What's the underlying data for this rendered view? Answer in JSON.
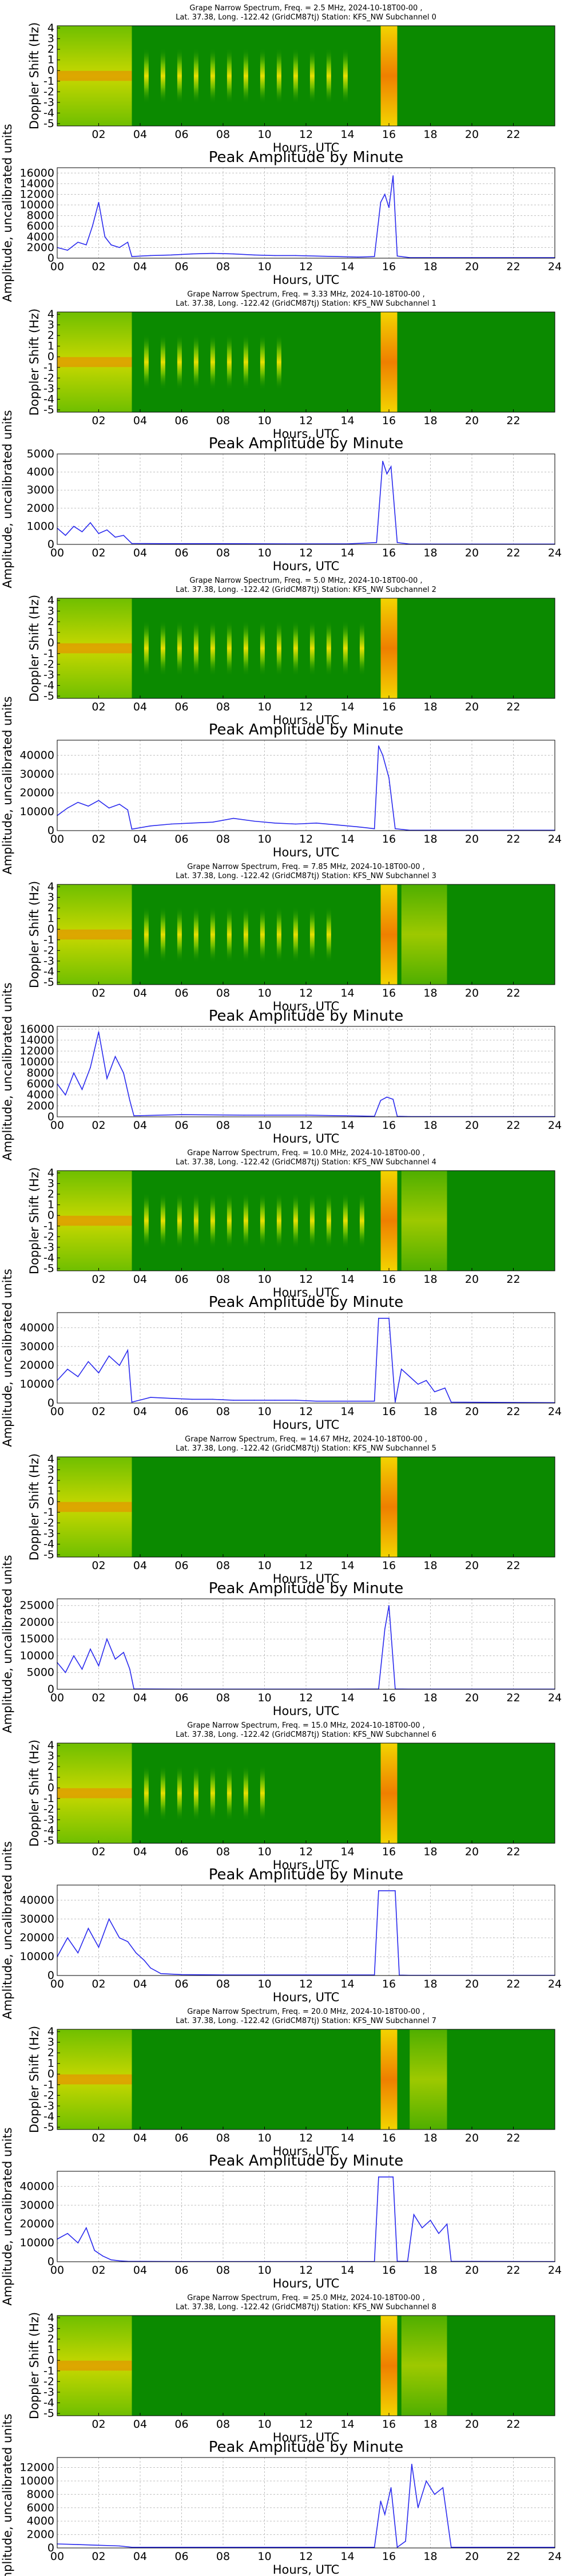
{
  "colors": {
    "spectrogram_background": "#0b8a00",
    "trace_color": "#2a2aee",
    "grid_color": "#bfbfbf",
    "band_yellow": "#f2d400",
    "band_orange": "#ef7f00"
  },
  "common": {
    "x_label": "Hours, UTC",
    "spectrum_y_label": "Doppler Shift (Hz)",
    "amplitude_title": "Peak Amplitude by Minute",
    "amplitude_y_label": "Amplitude, uncalibrated units",
    "spectrum_y_ticks": [
      "4",
      "3",
      "2",
      "1",
      "0",
      "-1",
      "-2",
      "-3",
      "-4",
      "-5"
    ],
    "spectrum_x_ticks": [
      "02",
      "04",
      "06",
      "08",
      "10",
      "12",
      "14",
      "16",
      "18",
      "20",
      "22"
    ],
    "amplitude_x_ticks": [
      "00",
      "02",
      "04",
      "06",
      "08",
      "10",
      "12",
      "14",
      "16",
      "18",
      "20",
      "22",
      "24"
    ]
  },
  "chart_data": [
    {
      "type": "heatmap",
      "title": "Grape Narrow Spectrum, Freq. = 2.5 MHz, 2024-10-18T00-00 ,",
      "subtitle": "Lat.  37.38, Long. -122.42 (GridCM87tj) Station: KFS_NW Subchannel 0",
      "xlabel": "Hours, UTC",
      "ylabel": "Doppler Shift (Hz)",
      "xlim": [
        0,
        24
      ],
      "ylim": [
        -5,
        5
      ],
      "noisy_until_hour": 3.6,
      "pulse_hours": [
        4.3,
        5.1,
        5.9,
        6.7,
        7.5,
        8.3,
        9.1,
        9.9,
        10.7,
        11.5,
        12.3,
        13.1,
        13.9
      ],
      "bright_band_hours": [
        15.6,
        16.4
      ],
      "late_band_hours": []
    },
    {
      "type": "line",
      "title": "Peak Amplitude by Minute",
      "xlabel": "Hours, UTC",
      "ylabel": "Amplitude, uncalibrated units",
      "xlim": [
        0,
        24
      ],
      "ylim": [
        0,
        17000
      ],
      "yticks": [
        0,
        2000,
        4000,
        6000,
        8000,
        10000,
        12000,
        14000,
        16000
      ],
      "x": [
        0,
        0.5,
        1,
        1.4,
        1.7,
        2,
        2.3,
        2.6,
        3,
        3.4,
        3.6,
        4.5,
        5.5,
        6.5,
        7.5,
        8.5,
        9.5,
        10.5,
        11.5,
        12.5,
        13.5,
        14.5,
        15.3,
        15.6,
        15.8,
        16,
        16.2,
        16.4,
        17,
        20,
        24
      ],
      "y": [
        2000,
        1500,
        3000,
        2500,
        6000,
        10500,
        4000,
        2500,
        2000,
        3000,
        300,
        500,
        600,
        800,
        900,
        800,
        600,
        500,
        500,
        400,
        300,
        200,
        300,
        10500,
        12000,
        9500,
        15500,
        400,
        100,
        100,
        100
      ]
    },
    {
      "type": "heatmap",
      "title": "Grape Narrow Spectrum, Freq. = 3.33 MHz, 2024-10-18T00-00 ,",
      "subtitle": "Lat.  37.38, Long. -122.42 (GridCM87tj) Station: KFS_NW Subchannel 1",
      "xlabel": "Hours, UTC",
      "ylabel": "Doppler Shift (Hz)",
      "xlim": [
        0,
        24
      ],
      "ylim": [
        -5,
        5
      ],
      "noisy_until_hour": 3.6,
      "pulse_hours": [
        4.3,
        5.1,
        5.9,
        6.7,
        7.5,
        8.3,
        9.1,
        9.9,
        10.7
      ],
      "bright_band_hours": [
        15.6,
        16.4
      ],
      "late_band_hours": []
    },
    {
      "type": "line",
      "title": "Peak Amplitude by Minute",
      "xlabel": "Hours, UTC",
      "ylabel": "Amplitude, uncalibrated units",
      "xlim": [
        0,
        24
      ],
      "ylim": [
        0,
        5000
      ],
      "yticks": [
        0,
        1000,
        2000,
        3000,
        4000,
        5000
      ],
      "x": [
        0,
        0.4,
        0.8,
        1.2,
        1.6,
        2,
        2.4,
        2.8,
        3.2,
        3.6,
        5,
        8,
        11,
        14,
        15.4,
        15.7,
        15.9,
        16.1,
        16.4,
        17,
        20,
        24
      ],
      "y": [
        900,
        500,
        1000,
        700,
        1200,
        600,
        800,
        400,
        500,
        50,
        40,
        40,
        30,
        30,
        100,
        4600,
        3900,
        4300,
        100,
        20,
        20,
        20
      ]
    },
    {
      "type": "heatmap",
      "title": "Grape Narrow Spectrum, Freq. = 5.0 MHz, 2024-10-18T00-00 ,",
      "subtitle": "Lat.  37.38, Long. -122.42 (GridCM87tj) Station: KFS_NW Subchannel 2",
      "xlabel": "Hours, UTC",
      "ylabel": "Doppler Shift (Hz)",
      "xlim": [
        0,
        24
      ],
      "ylim": [
        -5,
        5
      ],
      "noisy_until_hour": 3.6,
      "pulse_hours": [
        4.3,
        5.1,
        5.9,
        6.7,
        7.5,
        8.3,
        9.1,
        9.9,
        10.7,
        11.5,
        12.3,
        13.1,
        13.9,
        14.7
      ],
      "bright_band_hours": [
        15.6,
        16.4
      ],
      "late_band_hours": []
    },
    {
      "type": "line",
      "title": "Peak Amplitude by Minute",
      "xlabel": "Hours, UTC",
      "ylabel": "Amplitude, uncalibrated units",
      "xlim": [
        0,
        24
      ],
      "ylim": [
        0,
        48000
      ],
      "yticks": [
        0,
        10000,
        20000,
        30000,
        40000
      ],
      "x": [
        0,
        0.5,
        1,
        1.5,
        2,
        2.5,
        3,
        3.4,
        3.6,
        4.5,
        5.5,
        6.5,
        7.5,
        8.5,
        9.5,
        10.5,
        11.5,
        12.5,
        13.5,
        14.5,
        15.3,
        15.5,
        15.7,
        16,
        16.3,
        17,
        20,
        24
      ],
      "y": [
        8000,
        12000,
        15000,
        13000,
        16000,
        12000,
        14000,
        11000,
        800,
        2500,
        3500,
        4000,
        4500,
        6500,
        5000,
        4000,
        3500,
        4000,
        3000,
        2000,
        1000,
        45000,
        40000,
        28000,
        1000,
        200,
        200,
        200
      ]
    },
    {
      "type": "heatmap",
      "title": "Grape Narrow Spectrum, Freq. = 7.85 MHz, 2024-10-18T00-00 ,",
      "subtitle": "Lat.  37.38, Long. -122.42 (GridCM87tj) Station: KFS_NW Subchannel 3",
      "xlabel": "Hours, UTC",
      "ylabel": "Doppler Shift (Hz)",
      "xlim": [
        0,
        24
      ],
      "ylim": [
        -5,
        5
      ],
      "noisy_until_hour": 3.6,
      "pulse_hours": [
        4.3,
        5.1,
        5.9,
        6.7,
        7.5,
        8.3,
        9.1,
        9.9,
        10.7,
        11.5,
        12.3,
        13.1
      ],
      "bright_band_hours": [
        15.6,
        16.4
      ],
      "late_band_hours": [
        16.6,
        18.8
      ]
    },
    {
      "type": "line",
      "title": "Peak Amplitude by Minute",
      "xlabel": "Hours, UTC",
      "ylabel": "Amplitude, uncalibrated units",
      "xlim": [
        0,
        24
      ],
      "ylim": [
        0,
        16500
      ],
      "yticks": [
        0,
        2000,
        4000,
        6000,
        8000,
        10000,
        12000,
        14000,
        16000
      ],
      "x": [
        0,
        0.4,
        0.8,
        1.2,
        1.6,
        2,
        2.4,
        2.8,
        3.2,
        3.5,
        3.7,
        6,
        9,
        12,
        15.3,
        15.6,
        15.9,
        16.2,
        16.4,
        17,
        20,
        24
      ],
      "y": [
        6000,
        4000,
        8000,
        5000,
        9000,
        15500,
        7000,
        11000,
        8000,
        3000,
        200,
        400,
        300,
        300,
        100,
        3000,
        3600,
        3200,
        100,
        50,
        50,
        50
      ]
    },
    {
      "type": "heatmap",
      "title": "Grape Narrow Spectrum, Freq. = 10.0 MHz, 2024-10-18T00-00 ,",
      "subtitle": "Lat.  37.38, Long. -122.42 (GridCM87tj) Station: KFS_NW Subchannel 4",
      "xlabel": "Hours, UTC",
      "ylabel": "Doppler Shift (Hz)",
      "xlim": [
        0,
        24
      ],
      "ylim": [
        -5,
        5
      ],
      "noisy_until_hour": 3.6,
      "pulse_hours": [
        4.3,
        5.1,
        5.9,
        6.7,
        7.5,
        8.3,
        9.1,
        9.9,
        10.7,
        11.5,
        12.3,
        13.1,
        13.9,
        14.7
      ],
      "bright_band_hours": [
        15.6,
        16.4
      ],
      "late_band_hours": [
        16.6,
        18.8
      ]
    },
    {
      "type": "line",
      "title": "Peak Amplitude by Minute",
      "xlabel": "Hours, UTC",
      "ylabel": "Amplitude, uncalibrated units",
      "xlim": [
        0,
        24
      ],
      "ylim": [
        0,
        48000
      ],
      "yticks": [
        0,
        10000,
        20000,
        30000,
        40000
      ],
      "x": [
        0,
        0.5,
        1,
        1.5,
        2,
        2.5,
        3,
        3.4,
        3.6,
        4.5,
        5.5,
        6.5,
        7.5,
        8.5,
        9.5,
        10.5,
        11.5,
        12.5,
        13.5,
        14.5,
        15.3,
        15.5,
        16,
        16.3,
        16.6,
        17,
        17.4,
        17.8,
        18.2,
        18.7,
        19,
        24
      ],
      "y": [
        12000,
        18000,
        14000,
        22000,
        16000,
        25000,
        20000,
        28000,
        500,
        3000,
        2500,
        2000,
        2000,
        1500,
        1500,
        1500,
        1500,
        1000,
        1000,
        1000,
        1000,
        45000,
        45000,
        500,
        18000,
        14000,
        10000,
        12000,
        6000,
        8000,
        500,
        200
      ]
    },
    {
      "type": "heatmap",
      "title": "Grape Narrow Spectrum, Freq. = 14.67 MHz, 2024-10-18T00-00 ,",
      "subtitle": "Lat.  37.38, Long. -122.42 (GridCM87tj) Station: KFS_NW Subchannel 5",
      "xlabel": "Hours, UTC",
      "ylabel": "Doppler Shift (Hz)",
      "xlim": [
        0,
        24
      ],
      "ylim": [
        -5,
        5
      ],
      "noisy_until_hour": 3.6,
      "pulse_hours": [],
      "bright_band_hours": [
        15.6,
        16.4
      ],
      "late_band_hours": []
    },
    {
      "type": "line",
      "title": "Peak Amplitude by Minute",
      "xlabel": "Hours, UTC",
      "ylabel": "Amplitude, uncalibrated units",
      "xlim": [
        0,
        24
      ],
      "ylim": [
        0,
        27000
      ],
      "yticks": [
        0,
        5000,
        10000,
        15000,
        20000,
        25000
      ],
      "x": [
        0,
        0.4,
        0.8,
        1.2,
        1.6,
        2,
        2.4,
        2.8,
        3.2,
        3.5,
        3.7,
        6,
        10,
        14,
        15.5,
        15.8,
        16,
        16.3,
        17,
        20,
        24
      ],
      "y": [
        8000,
        5000,
        10000,
        6000,
        12000,
        7000,
        15000,
        9000,
        11000,
        6000,
        100,
        50,
        50,
        50,
        100,
        18000,
        25000,
        100,
        50,
        50,
        50
      ]
    },
    {
      "type": "heatmap",
      "title": "Grape Narrow Spectrum, Freq. = 15.0 MHz, 2024-10-18T00-00 ,",
      "subtitle": "Lat.  37.38, Long. -122.42 (GridCM87tj) Station: KFS_NW Subchannel 6",
      "xlabel": "Hours, UTC",
      "ylabel": "Doppler Shift (Hz)",
      "xlim": [
        0,
        24
      ],
      "ylim": [
        -5,
        5
      ],
      "noisy_until_hour": 3.6,
      "pulse_hours": [
        4.3,
        5.1,
        5.9,
        6.7,
        7.5,
        8.3,
        9.1,
        9.9
      ],
      "bright_band_hours": [
        15.6,
        16.4
      ],
      "late_band_hours": []
    },
    {
      "type": "line",
      "title": "Peak Amplitude by Minute",
      "xlabel": "Hours, UTC",
      "ylabel": "Amplitude, uncalibrated units",
      "xlim": [
        0,
        24
      ],
      "ylim": [
        0,
        48000
      ],
      "yticks": [
        0,
        10000,
        20000,
        30000,
        40000
      ],
      "x": [
        0,
        0.5,
        1,
        1.5,
        2,
        2.5,
        3,
        3.4,
        3.8,
        4.2,
        4.5,
        5,
        6,
        8,
        10,
        12,
        14,
        15.3,
        15.5,
        16.3,
        16.5,
        17,
        20,
        24
      ],
      "y": [
        10000,
        20000,
        12000,
        25000,
        15000,
        30000,
        20000,
        18000,
        12000,
        8000,
        4000,
        1000,
        500,
        300,
        300,
        300,
        300,
        300,
        45000,
        45000,
        200,
        100,
        100,
        100
      ]
    },
    {
      "type": "heatmap",
      "title": "Grape Narrow Spectrum, Freq. = 20.0 MHz, 2024-10-18T00-00 ,",
      "subtitle": "Lat.  37.38, Long. -122.42 (GridCM87tj) Station: KFS_NW Subchannel 7",
      "xlabel": "Hours, UTC",
      "ylabel": "Doppler Shift (Hz)",
      "xlim": [
        0,
        24
      ],
      "ylim": [
        -5,
        5
      ],
      "noisy_until_hour": 3.6,
      "pulse_hours": [],
      "bright_band_hours": [
        15.6,
        16.4
      ],
      "late_band_hours": [
        17.0,
        18.8
      ]
    },
    {
      "type": "line",
      "title": "Peak Amplitude by Minute",
      "xlabel": "Hours, UTC",
      "ylabel": "Amplitude, uncalibrated units",
      "xlim": [
        0,
        24
      ],
      "ylim": [
        0,
        48000
      ],
      "yticks": [
        0,
        10000,
        20000,
        30000,
        40000
      ],
      "x": [
        0,
        0.5,
        1,
        1.4,
        1.8,
        2.2,
        2.6,
        3,
        3.4,
        6,
        10,
        14,
        15.3,
        15.5,
        16.2,
        16.4,
        16.9,
        17.2,
        17.6,
        18,
        18.4,
        18.8,
        19,
        24
      ],
      "y": [
        12000,
        15000,
        10000,
        18000,
        6000,
        3000,
        1000,
        500,
        200,
        100,
        100,
        100,
        100,
        45000,
        45000,
        200,
        200,
        25000,
        18000,
        22000,
        15000,
        20000,
        200,
        100
      ]
    },
    {
      "type": "heatmap",
      "title": "Grape Narrow Spectrum, Freq. = 25.0 MHz, 2024-10-18T00-00 ,",
      "subtitle": "Lat.  37.38, Long. -122.42 (GridCM87tj) Station: KFS_NW Subchannel 8",
      "xlabel": "Hours, UTC",
      "ylabel": "Doppler Shift (Hz)",
      "xlim": [
        0,
        24
      ],
      "ylim": [
        -5,
        5
      ],
      "noisy_until_hour": 3.6,
      "pulse_hours": [],
      "bright_band_hours": [
        15.6,
        16.4
      ],
      "late_band_hours": [
        16.6,
        18.8
      ]
    },
    {
      "type": "line",
      "title": "Peak Amplitude by Minute",
      "xlabel": "Hours, UTC",
      "ylabel": "Amplitude, uncalibrated units",
      "xlim": [
        0,
        24
      ],
      "ylim": [
        0,
        13500
      ],
      "yticks": [
        0,
        2000,
        4000,
        6000,
        8000,
        10000,
        12000
      ],
      "x": [
        0,
        1,
        2,
        3,
        3.6,
        6,
        10,
        14,
        15.3,
        15.6,
        15.8,
        16.1,
        16.4,
        16.8,
        17.1,
        17.4,
        17.8,
        18.2,
        18.6,
        19,
        24
      ],
      "y": [
        600,
        500,
        400,
        300,
        100,
        100,
        100,
        100,
        100,
        7000,
        5000,
        9000,
        100,
        1000,
        12500,
        6000,
        10000,
        8000,
        9000,
        100,
        100
      ]
    }
  ]
}
